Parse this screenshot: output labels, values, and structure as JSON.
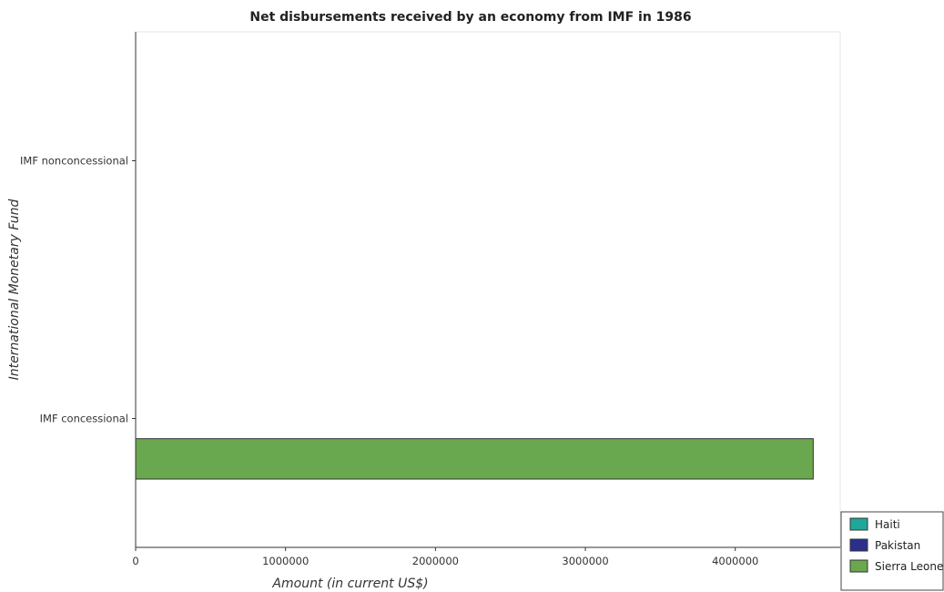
{
  "chart_data": {
    "type": "bar",
    "orientation": "horizontal",
    "title": "Net disbursements received by an economy from IMF in 1986",
    "xlabel": "Amount (in current US$)",
    "ylabel": "International Monetary Fund",
    "categories": [
      "IMF concessional",
      "IMF nonconcessional"
    ],
    "series": [
      {
        "name": "Haiti",
        "color": "#1fa89a",
        "values": [
          0,
          0
        ]
      },
      {
        "name": "Pakistan",
        "color": "#2b2f8c",
        "values": [
          0,
          0
        ]
      },
      {
        "name": "Sierra Leone",
        "color": "#6aa84f",
        "values": [
          4520000,
          0
        ]
      }
    ],
    "x_ticks": [
      0,
      1000000,
      2000000,
      3000000,
      4000000
    ],
    "x_tick_labels": [
      "0",
      "1000000",
      "2000000",
      "3000000",
      "4000000"
    ],
    "xlim": [
      0,
      4700000
    ],
    "grid": false,
    "legend_position": "bottom-right"
  }
}
